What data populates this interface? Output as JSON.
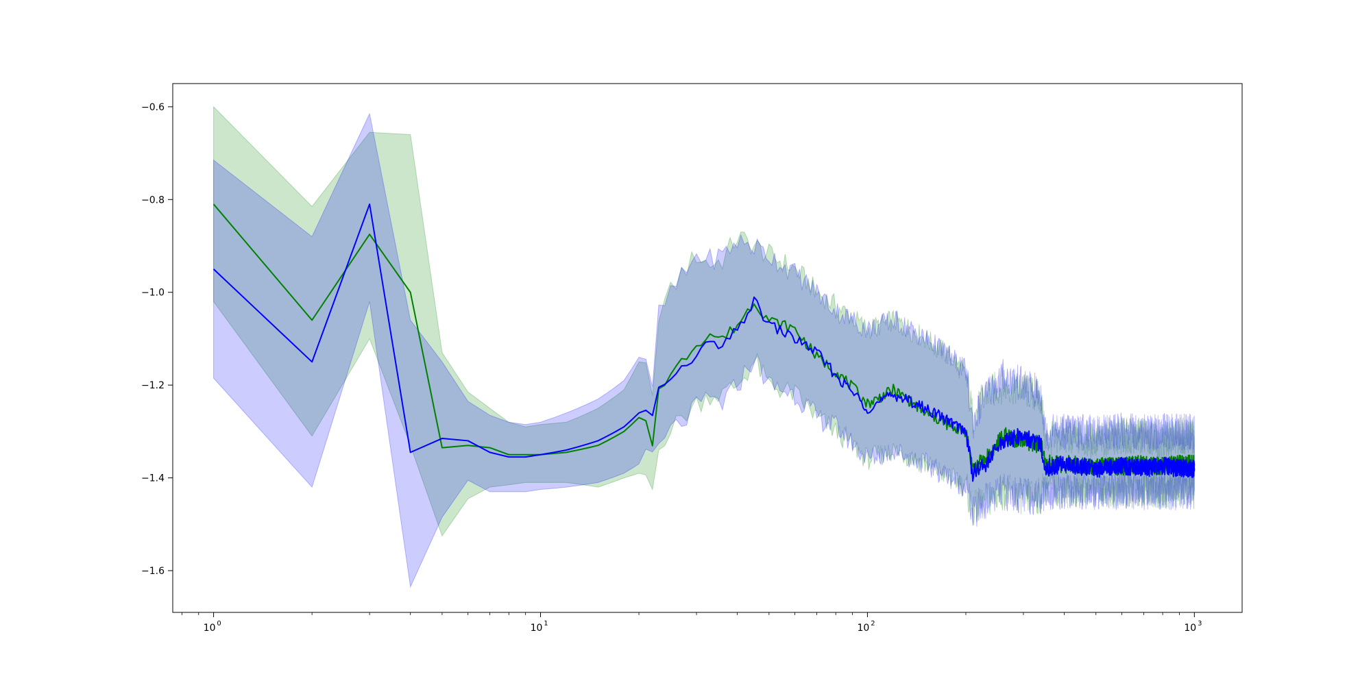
{
  "chart_data": {
    "type": "line",
    "title": "",
    "xlabel": "",
    "ylabel": "",
    "xscale": "log",
    "xlim": [
      0.75,
      1400
    ],
    "ylim": [
      -1.69,
      -0.55
    ],
    "grid": false,
    "legend": "none",
    "x_ticks": [
      {
        "value": 1,
        "base": "10",
        "exp": "0"
      },
      {
        "value": 10,
        "base": "10",
        "exp": "1"
      },
      {
        "value": 100,
        "base": "10",
        "exp": "2"
      },
      {
        "value": 1000,
        "base": "10",
        "exp": "3"
      }
    ],
    "y_ticks": [
      {
        "value": -0.6,
        "label": "−0.6"
      },
      {
        "value": -0.8,
        "label": "−0.8"
      },
      {
        "value": -1.0,
        "label": "−1.0"
      },
      {
        "value": -1.2,
        "label": "−1.2"
      },
      {
        "value": -1.4,
        "label": "−1.4"
      },
      {
        "value": -1.6,
        "label": "−1.6"
      }
    ],
    "series": [
      {
        "color": "#008000",
        "band_color": "#008000",
        "band_opacity": 0.2,
        "x": [
          1,
          2,
          3,
          4,
          5,
          6,
          7,
          8,
          9,
          10,
          12,
          15,
          18,
          20,
          21,
          22,
          23,
          25,
          27,
          30,
          33,
          36,
          40,
          45,
          50,
          60,
          70,
          80,
          100,
          120,
          150,
          180,
          200,
          210,
          230,
          260,
          300,
          340,
          350,
          400,
          500,
          600,
          700,
          800,
          900,
          1000
        ],
        "y": [
          -0.81,
          -1.06,
          -0.875,
          -1.0,
          -1.335,
          -1.33,
          -1.335,
          -1.35,
          -1.35,
          -1.35,
          -1.345,
          -1.33,
          -1.3,
          -1.27,
          -1.27,
          -1.335,
          -1.2,
          -1.18,
          -1.15,
          -1.11,
          -1.09,
          -1.1,
          -1.07,
          -1.02,
          -1.06,
          -1.08,
          -1.14,
          -1.17,
          -1.24,
          -1.21,
          -1.26,
          -1.29,
          -1.3,
          -1.38,
          -1.36,
          -1.31,
          -1.32,
          -1.33,
          -1.37,
          -1.37,
          -1.375,
          -1.375,
          -1.37,
          -1.375,
          -1.37,
          -1.37
        ],
        "y_lower": [
          -1.02,
          -1.31,
          -1.1,
          -1.33,
          -1.525,
          -1.445,
          -1.42,
          -1.415,
          -1.41,
          -1.41,
          -1.41,
          -1.42,
          -1.4,
          -1.39,
          -1.395,
          -1.425,
          -1.32,
          -1.3,
          -1.27,
          -1.24,
          -1.22,
          -1.22,
          -1.2,
          -1.15,
          -1.2,
          -1.22,
          -1.27,
          -1.3,
          -1.36,
          -1.34,
          -1.37,
          -1.4,
          -1.42,
          -1.47,
          -1.45,
          -1.43,
          -1.44,
          -1.44,
          -1.41,
          -1.43,
          -1.42,
          -1.43,
          -1.42,
          -1.43,
          -1.42,
          -1.42
        ],
        "y_upper": [
          -0.6,
          -0.815,
          -0.655,
          -0.66,
          -1.13,
          -1.215,
          -1.25,
          -1.28,
          -1.29,
          -1.285,
          -1.28,
          -1.25,
          -1.21,
          -1.15,
          -1.17,
          -1.24,
          -1.04,
          -1.0,
          -0.96,
          -0.92,
          -0.94,
          -0.93,
          -0.88,
          -0.9,
          -0.92,
          -0.95,
          -1.0,
          -1.03,
          -1.08,
          -1.06,
          -1.1,
          -1.14,
          -1.18,
          -1.27,
          -1.22,
          -1.2,
          -1.21,
          -1.23,
          -1.32,
          -1.31,
          -1.32,
          -1.31,
          -1.31,
          -1.32,
          -1.31,
          -1.31
        ]
      },
      {
        "color": "#0000ff",
        "band_color": "#0000ff",
        "band_opacity": 0.2,
        "x": [
          1,
          2,
          3,
          4,
          5,
          6,
          7,
          8,
          9,
          10,
          12,
          15,
          18,
          20,
          21,
          22,
          23,
          25,
          27,
          30,
          33,
          36,
          40,
          45,
          50,
          60,
          70,
          80,
          100,
          120,
          150,
          180,
          200,
          210,
          230,
          260,
          300,
          340,
          350,
          400,
          500,
          600,
          700,
          800,
          900,
          1000
        ],
        "y": [
          -0.95,
          -1.15,
          -0.81,
          -1.345,
          -1.315,
          -1.32,
          -1.345,
          -1.355,
          -1.355,
          -1.35,
          -1.34,
          -1.32,
          -1.29,
          -1.26,
          -1.26,
          -1.27,
          -1.2,
          -1.19,
          -1.17,
          -1.13,
          -1.11,
          -1.12,
          -1.08,
          -1.02,
          -1.07,
          -1.1,
          -1.13,
          -1.18,
          -1.25,
          -1.22,
          -1.25,
          -1.28,
          -1.3,
          -1.39,
          -1.37,
          -1.32,
          -1.31,
          -1.33,
          -1.38,
          -1.37,
          -1.38,
          -1.375,
          -1.38,
          -1.375,
          -1.38,
          -1.38
        ],
        "y_lower": [
          -1.185,
          -1.42,
          -1.02,
          -1.635,
          -1.485,
          -1.405,
          -1.43,
          -1.43,
          -1.43,
          -1.425,
          -1.42,
          -1.41,
          -1.39,
          -1.37,
          -1.36,
          -1.35,
          -1.34,
          -1.3,
          -1.28,
          -1.25,
          -1.23,
          -1.24,
          -1.2,
          -1.14,
          -1.2,
          -1.22,
          -1.27,
          -1.29,
          -1.36,
          -1.34,
          -1.37,
          -1.4,
          -1.42,
          -1.48,
          -1.45,
          -1.43,
          -1.44,
          -1.44,
          -1.43,
          -1.43,
          -1.43,
          -1.43,
          -1.43,
          -1.43,
          -1.43,
          -1.43
        ],
        "y_upper": [
          -0.715,
          -0.88,
          -0.615,
          -1.06,
          -1.15,
          -1.235,
          -1.265,
          -1.28,
          -1.285,
          -1.28,
          -1.26,
          -1.23,
          -1.19,
          -1.14,
          -1.16,
          -1.2,
          -1.05,
          -1.0,
          -0.97,
          -0.92,
          -0.93,
          -0.92,
          -0.89,
          -0.9,
          -0.92,
          -0.96,
          -1.0,
          -1.04,
          -1.08,
          -1.06,
          -1.1,
          -1.14,
          -1.17,
          -1.28,
          -1.22,
          -1.18,
          -1.2,
          -1.22,
          -1.3,
          -1.3,
          -1.3,
          -1.3,
          -1.3,
          -1.3,
          -1.3,
          -1.3
        ]
      }
    ]
  }
}
